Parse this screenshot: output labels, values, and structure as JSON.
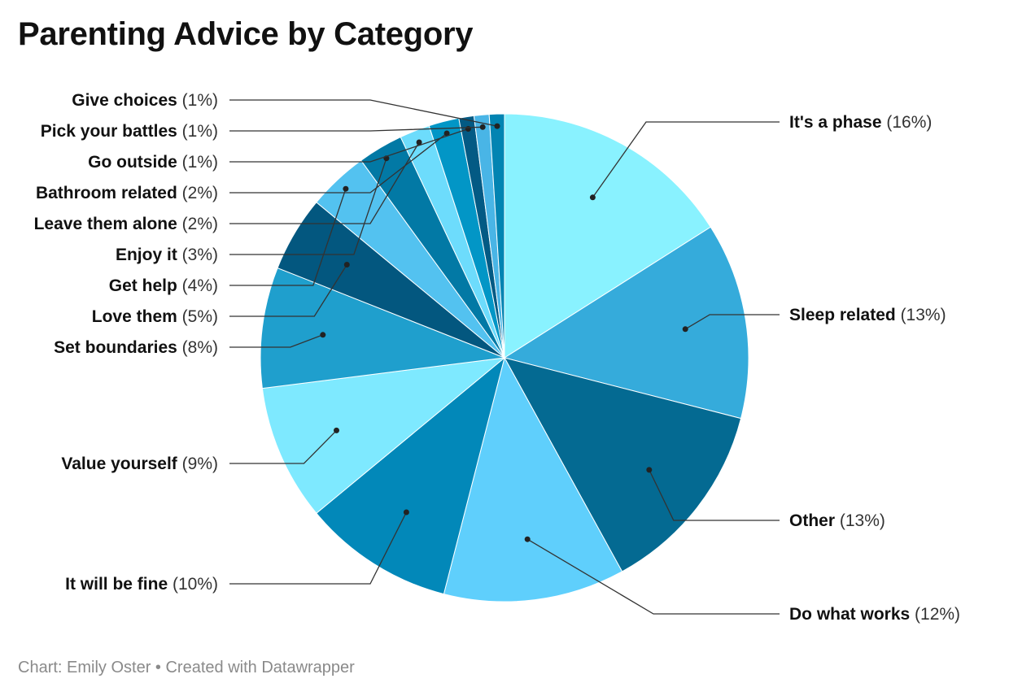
{
  "chart_data": {
    "type": "pie",
    "title": "Parenting Advice by Category",
    "slices": [
      {
        "label": "It's a phase",
        "value": 16,
        "display": "(16%)",
        "color": "#89f2ff"
      },
      {
        "label": "Sleep related",
        "value": 13,
        "display": "(13%)",
        "color": "#35abdb"
      },
      {
        "label": "Other",
        "value": 13,
        "display": "(13%)",
        "color": "#046a92"
      },
      {
        "label": "Do what works",
        "value": 12,
        "display": "(12%)",
        "color": "#5fcffc"
      },
      {
        "label": "It will be fine",
        "value": 10,
        "display": "(10%)",
        "color": "#0288b9"
      },
      {
        "label": "Value yourself",
        "value": 9,
        "display": "(9%)",
        "color": "#7ee9ff"
      },
      {
        "label": "Set boundaries",
        "value": 8,
        "display": "(8%)",
        "color": "#1f9fcd"
      },
      {
        "label": "Love them",
        "value": 5,
        "display": "(5%)",
        "color": "#03577f"
      },
      {
        "label": "Get help",
        "value": 4,
        "display": "(4%)",
        "color": "#53c2f0"
      },
      {
        "label": "Enjoy it",
        "value": 3,
        "display": "(3%)",
        "color": "#0279a5"
      },
      {
        "label": "Leave them alone",
        "value": 2,
        "display": "(2%)",
        "color": "#6ddcfc"
      },
      {
        "label": "Bathroom related",
        "value": 2,
        "display": "(2%)",
        "color": "#0296c6"
      },
      {
        "label": "Go outside",
        "value": 1,
        "display": "(1%)",
        "color": "#035a84"
      },
      {
        "label": "Pick your battles",
        "value": 1,
        "display": "(1%)",
        "color": "#49b5e6"
      },
      {
        "label": "Give choices",
        "value": 1,
        "display": "(1%)",
        "color": "#0284b2"
      }
    ]
  },
  "footer": {
    "source": "Chart: Emily Oster",
    "separator": " • ",
    "credit": "Created with Datawrapper"
  }
}
